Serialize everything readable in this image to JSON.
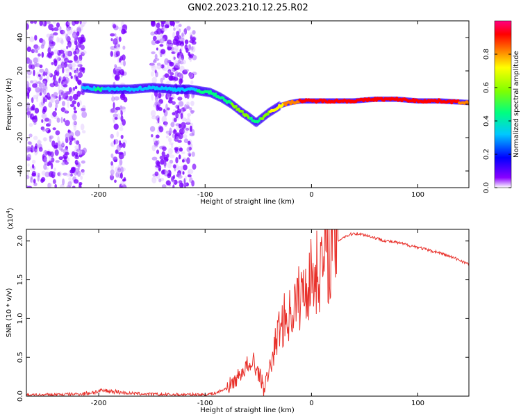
{
  "title": "GN02.2023.210.12.25.R02",
  "chart_data": [
    {
      "type": "heatmap",
      "xlabel": "Height of straight line (km)",
      "ylabel": "Frequency (Hz)",
      "xlim": [
        -268,
        148
      ],
      "ylim": [
        -50,
        50
      ],
      "xticks": [
        -200,
        -100,
        0,
        100
      ],
      "xtick_labels": [
        "-200",
        "-100",
        "0",
        "100"
      ],
      "yticks": [
        -40,
        -20,
        0,
        20,
        40
      ],
      "ytick_labels": [
        "-40",
        "-20",
        "0",
        "20",
        "40"
      ],
      "colorbar": {
        "label": "Normalized spectral amplitude",
        "range": [
          0,
          1
        ],
        "ticks": [
          0.0,
          0.2,
          0.4,
          0.6,
          0.8
        ],
        "tick_labels": [
          "0.0",
          "0.2",
          "0.4",
          "0.6",
          "0.8"
        ],
        "colors": [
          "#ffffff",
          "#7a00ff",
          "#0000ff",
          "#00c8ff",
          "#00ff80",
          "#80ff00",
          "#ffff00",
          "#ff8000",
          "#ff0000",
          "#ff0080"
        ]
      },
      "ridge": {
        "x": [
          -215,
          -200,
          -185,
          -170,
          -150,
          -130,
          -115,
          -105,
          -95,
          -85,
          -75,
          -65,
          -58,
          -52,
          -48,
          -40,
          -30,
          -20,
          -10,
          0,
          20,
          40,
          60,
          80,
          100,
          120,
          148
        ],
        "y": [
          10,
          9,
          9,
          9,
          10,
          9,
          9,
          8,
          7,
          4,
          0,
          -5,
          -8,
          -11,
          -9,
          -5,
          -1,
          1,
          2,
          2,
          2,
          2,
          3,
          3,
          2,
          2,
          1
        ],
        "amplitude": [
          0.35,
          0.4,
          0.35,
          0.35,
          0.3,
          0.3,
          0.35,
          0.4,
          0.45,
          0.45,
          0.5,
          0.55,
          0.5,
          0.4,
          0.5,
          0.6,
          0.7,
          0.75,
          0.85,
          0.9,
          0.9,
          0.85,
          0.9,
          0.9,
          0.85,
          0.9,
          0.8
        ]
      },
      "noise_bands": [
        [
          -268,
          -213
        ],
        [
          -188,
          -175
        ],
        [
          -150,
          -110
        ]
      ]
    },
    {
      "type": "line",
      "xlabel": "Height of straight line (km)",
      "ylabel": "SNR (10 * v/v)",
      "y_multiplier": "(x10",
      "y_multiplier_exp": "4",
      "y_multiplier_close": ")",
      "xlim": [
        -268,
        148
      ],
      "ylim": [
        0,
        2.15
      ],
      "xticks": [
        -200,
        -100,
        0,
        100
      ],
      "xtick_labels": [
        "-200",
        "-100",
        "0",
        "100"
      ],
      "yticks": [
        0.0,
        0.5,
        1.0,
        1.5,
        2.0
      ],
      "ytick_labels": [
        "0.0",
        "0.5",
        "1.0",
        "1.5",
        "2.0"
      ],
      "line_color": "#e8302a",
      "series": [
        {
          "x": [
            -268,
            -240,
            -215,
            -205,
            -195,
            -185,
            -175,
            -160,
            -140,
            -120,
            -100,
            -90,
            -80,
            -72,
            -66,
            -60,
            -57,
            -55,
            -52,
            -50,
            -48,
            -45,
            -40,
            -35,
            -30,
            -25,
            -20,
            -15,
            -10,
            -5,
            0,
            5,
            10,
            15,
            20,
            25,
            30,
            40,
            50,
            60,
            70,
            80,
            90,
            100,
            110,
            120,
            130,
            140,
            148
          ],
          "y": [
            0.01,
            0.02,
            0.03,
            0.05,
            0.07,
            0.06,
            0.04,
            0.03,
            0.02,
            0.02,
            0.02,
            0.04,
            0.1,
            0.2,
            0.3,
            0.4,
            0.3,
            0.5,
            0.35,
            0.3,
            0.25,
            0.1,
            0.3,
            0.6,
            0.9,
            1.0,
            1.05,
            1.2,
            1.3,
            1.4,
            1.55,
            1.6,
            1.7,
            1.8,
            1.92,
            2.0,
            2.05,
            2.1,
            2.08,
            2.04,
            2.0,
            1.98,
            1.95,
            1.92,
            1.88,
            1.85,
            1.8,
            1.75,
            1.7
          ]
        }
      ]
    }
  ]
}
